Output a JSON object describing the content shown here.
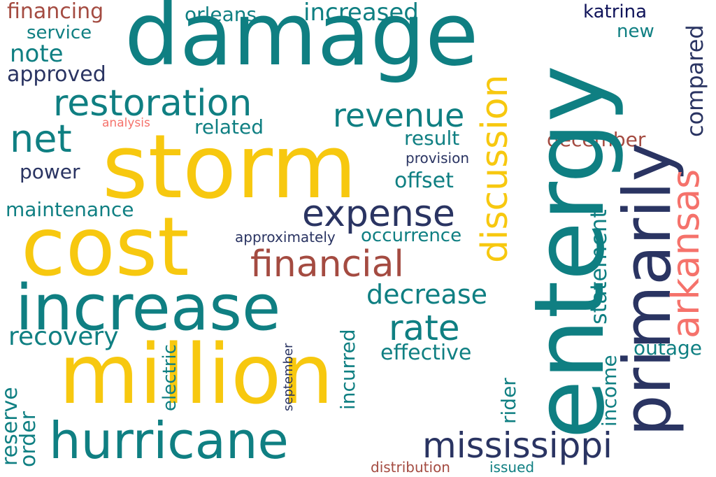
{
  "word_cloud": {
    "words": [
      "damage",
      "entergy",
      "storm",
      "cost",
      "million",
      "increase",
      "hurricane",
      "primarily",
      "restoration",
      "revenue",
      "expense",
      "financial",
      "discussion",
      "arkansas",
      "mississippi",
      "net",
      "rate",
      "decrease",
      "recovery",
      "financing",
      "orleans",
      "increased",
      "katrina",
      "new",
      "service",
      "note",
      "approved",
      "compared",
      "related",
      "analysis",
      "result",
      "december",
      "provision",
      "power",
      "offset",
      "maintenance",
      "approximately",
      "occurrence",
      "statement",
      "income",
      "outage",
      "effective",
      "electric",
      "incurred",
      "september",
      "rider",
      "reserve",
      "order",
      "distribution",
      "issued"
    ]
  },
  "colors": {
    "teal": "#0f7f82",
    "gold": "#f7c80f",
    "navy": "#2a3462",
    "rust": "#a44b41",
    "coral": "#f5726b",
    "indigo": "#10145a",
    "background": "#ffffff"
  }
}
